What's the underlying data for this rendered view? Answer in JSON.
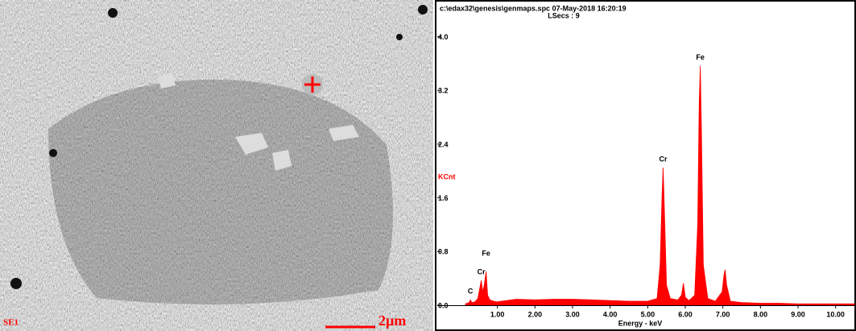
{
  "micrograph": {
    "label": "SE1",
    "scale_label": "2µm"
  },
  "chart_data": {
    "type": "area",
    "title": "c:\\edax32\\genesis\\genmaps.spc  07-May-2018 16:20:19",
    "subtitle": "LSecs : 9",
    "x_label": "Energy - keV",
    "y_label": "KCnt",
    "color": "#ff0000",
    "xlim": [
      -0.6,
      10.5
    ],
    "ylim": [
      0,
      4.2
    ],
    "xticks": [
      {
        "value": 1,
        "label": "1.00"
      },
      {
        "value": 2,
        "label": "2.00"
      },
      {
        "value": 3,
        "label": "3.00"
      },
      {
        "value": 4,
        "label": "4.00"
      },
      {
        "value": 5,
        "label": "5.00"
      },
      {
        "value": 6,
        "label": "6.00"
      },
      {
        "value": 7,
        "label": "7.00"
      },
      {
        "value": 8,
        "label": "8.00"
      },
      {
        "value": 9,
        "label": "9.00"
      },
      {
        "value": 10,
        "label": "10.00"
      }
    ],
    "yticks": [
      {
        "value": 0,
        "label": "0.0"
      },
      {
        "value": 0.8,
        "label": "0.8"
      },
      {
        "value": 1.6,
        "label": "1.6"
      },
      {
        "value": 2.4,
        "label": "2.4"
      },
      {
        "value": 3.2,
        "label": "3.2"
      },
      {
        "value": 4,
        "label": "4.0"
      }
    ],
    "x": [
      0.15,
      0.25,
      0.28,
      0.32,
      0.4,
      0.48,
      0.53,
      0.57,
      0.61,
      0.65,
      0.7,
      0.74,
      0.8,
      0.9,
      1.0,
      1.5,
      2.0,
      2.5,
      3.0,
      3.5,
      4.0,
      4.5,
      5.0,
      5.25,
      5.33,
      5.38,
      5.41,
      5.44,
      5.5,
      5.6,
      5.8,
      5.9,
      5.95,
      6.0,
      6.1,
      6.25,
      6.33,
      6.37,
      6.4,
      6.43,
      6.48,
      6.6,
      6.8,
      6.98,
      7.03,
      7.06,
      7.1,
      7.2,
      7.5,
      8.0,
      8.5,
      9.0,
      9.5,
      10.0,
      10.5
    ],
    "values": [
      0.02,
      0.04,
      0.08,
      0.04,
      0.05,
      0.1,
      0.25,
      0.37,
      0.2,
      0.3,
      0.5,
      0.15,
      0.08,
      0.06,
      0.05,
      0.09,
      0.08,
      0.09,
      0.09,
      0.08,
      0.07,
      0.06,
      0.06,
      0.1,
      0.6,
      1.6,
      2.05,
      1.5,
      0.3,
      0.1,
      0.08,
      0.15,
      0.33,
      0.12,
      0.07,
      0.15,
      1.2,
      3.0,
      3.57,
      2.6,
      0.6,
      0.1,
      0.06,
      0.2,
      0.45,
      0.53,
      0.3,
      0.06,
      0.04,
      0.03,
      0.03,
      0.02,
      0.02,
      0.02,
      0.02
    ],
    "peak_labels": [
      {
        "text": "C",
        "x": 0.28
      },
      {
        "text": "Cr",
        "x": 0.57
      },
      {
        "text": "Fe",
        "x": 0.7
      },
      {
        "text": "Cr",
        "x": 5.41
      },
      {
        "text": "Fe",
        "x": 6.4
      }
    ]
  }
}
